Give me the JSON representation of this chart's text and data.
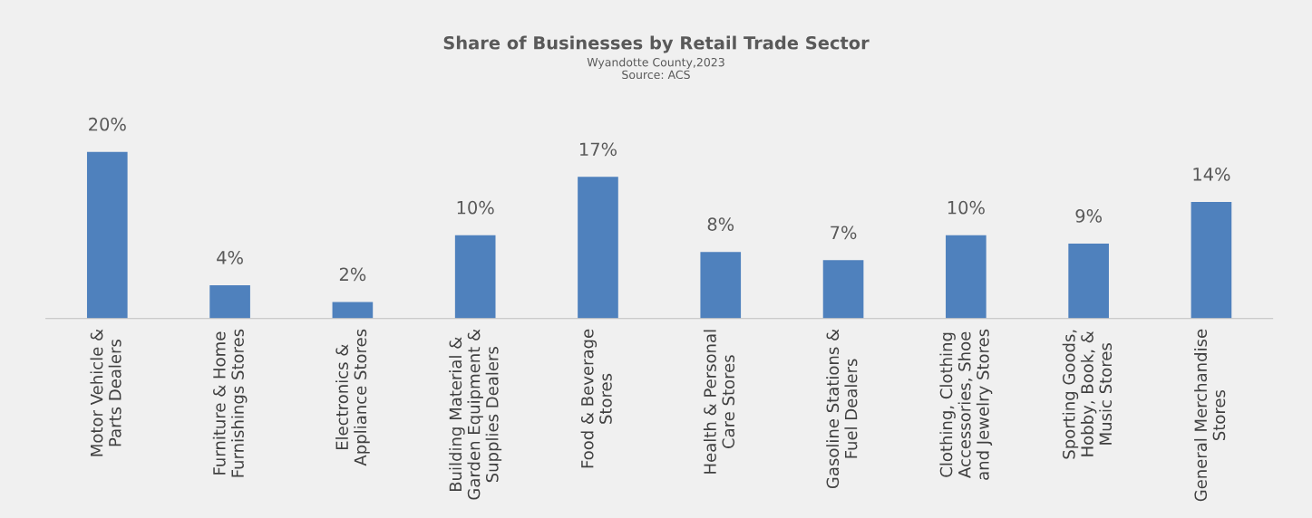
{
  "chart_data": {
    "type": "bar",
    "title": "Share of Businesses by Retail Trade Sector",
    "subtitle": "Wyandotte County,2023",
    "annotations": [
      "Source: ACS"
    ],
    "categories": [
      "Motor Vehicle &\nParts Dealers",
      "Furniture & Home\nFurnishings Stores",
      "Electronics &\nAppliance Stores",
      "Building Material &\nGarden Equipment &\nSupplies Dealers",
      "Food & Beverage\nStores",
      "Health & Personal\nCare Stores",
      "Gasoline Stations &\nFuel Dealers",
      "Clothing, Clothing\nAccessories, Shoe\nand Jewelry Stores",
      "Sporting Goods,\nHobby, Book, &\nMusic Stores",
      "General Merchandise\nStores"
    ],
    "values": [
      20,
      4,
      2,
      10,
      17,
      8,
      7,
      10,
      9,
      14
    ],
    "value_labels": [
      "20%",
      "4%",
      "2%",
      "10%",
      "17%",
      "8%",
      "7%",
      "10%",
      "9%",
      "14%"
    ],
    "color": "#4f81bd",
    "grid": false
  }
}
